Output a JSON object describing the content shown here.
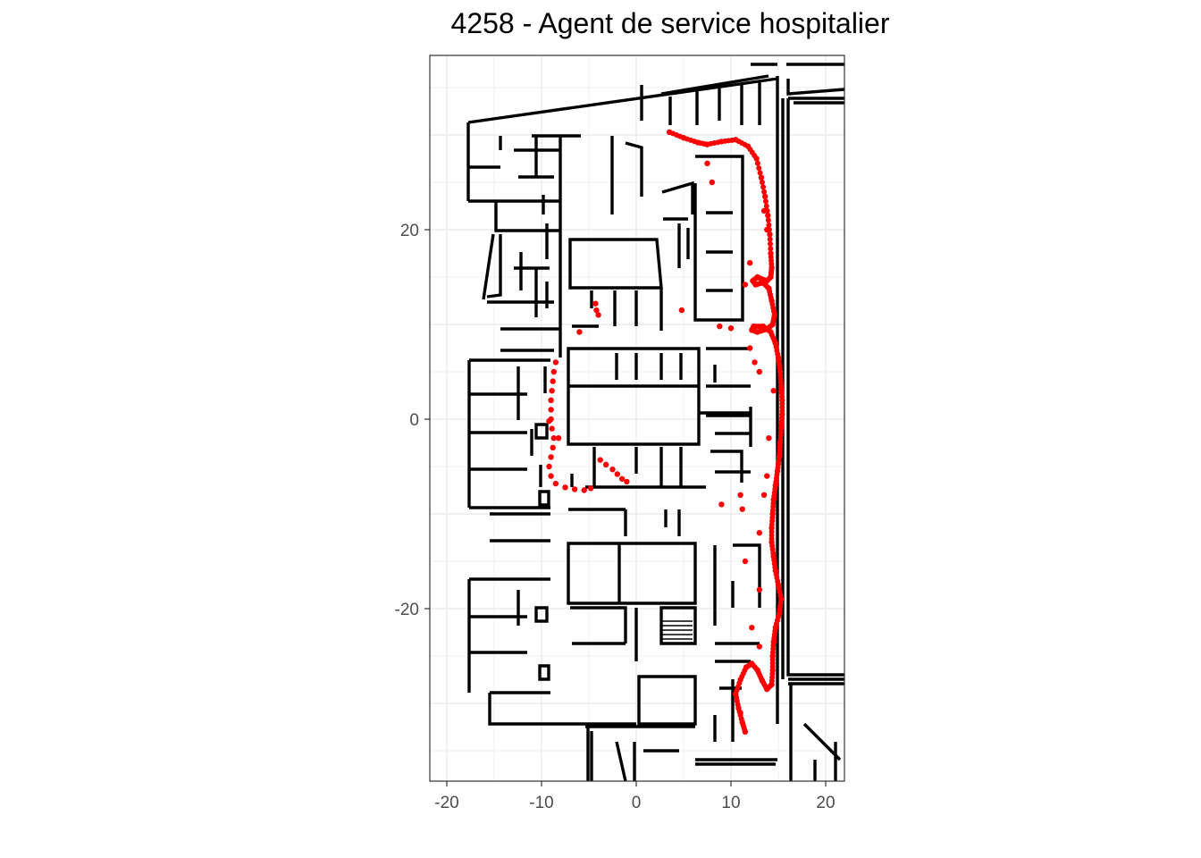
{
  "chart_data": {
    "type": "scatter",
    "title": "4258 - Agent de service hospitalier",
    "xlabel": "",
    "ylabel": "",
    "xlim": [
      -22,
      22
    ],
    "ylim": [
      -38,
      38
    ],
    "x_ticks": [
      -20,
      -10,
      0,
      10,
      20
    ],
    "y_ticks": [
      20,
      0,
      -20
    ],
    "grid": true,
    "background_layer": "floor plan walls (black line segments)",
    "point_color": "#ff0000",
    "wall_color": "#000000",
    "series": [
      {
        "points": [
          [
            3.5,
            30.3
          ],
          [
            5.0,
            29.7
          ],
          [
            6.5,
            29.2
          ],
          [
            7.5,
            29.0
          ],
          [
            9.0,
            29.3
          ],
          [
            10.5,
            29.5
          ],
          [
            11.8,
            28.8
          ],
          [
            12.7,
            27.5
          ],
          [
            13.2,
            25.5
          ],
          [
            13.6,
            23.5
          ],
          [
            13.9,
            21.5
          ],
          [
            14.1,
            19.5
          ],
          [
            14.2,
            17.5
          ],
          [
            14.3,
            16.0
          ],
          [
            14.2,
            15.0
          ],
          [
            13.8,
            14.6
          ],
          [
            13.2,
            14.8
          ],
          [
            12.8,
            15.0
          ],
          [
            12.3,
            14.6
          ],
          [
            12.6,
            14.2
          ],
          [
            13.4,
            14.4
          ],
          [
            14.0,
            13.8
          ],
          [
            14.3,
            12.5
          ],
          [
            14.6,
            11.0
          ],
          [
            14.4,
            10.0
          ],
          [
            13.8,
            9.5
          ],
          [
            12.8,
            9.2
          ],
          [
            12.2,
            9.4
          ],
          [
            12.4,
            9.8
          ],
          [
            13.4,
            9.8
          ],
          [
            14.2,
            9.2
          ],
          [
            14.7,
            8.0
          ],
          [
            15.0,
            6.5
          ],
          [
            15.2,
            5.0
          ],
          [
            15.3,
            3.5
          ],
          [
            15.4,
            2.0
          ],
          [
            15.4,
            0.5
          ],
          [
            15.3,
            -1.0
          ],
          [
            15.2,
            -2.5
          ],
          [
            15.1,
            -4.0
          ],
          [
            14.9,
            -5.5
          ],
          [
            14.7,
            -7.0
          ],
          [
            14.5,
            -8.5
          ],
          [
            14.4,
            -10.0
          ],
          [
            14.3,
            -11.5
          ],
          [
            14.3,
            -13.0
          ],
          [
            14.5,
            -14.5
          ],
          [
            14.7,
            -16.0
          ],
          [
            15.0,
            -17.5
          ],
          [
            15.3,
            -19.0
          ],
          [
            15.1,
            -20.5
          ],
          [
            14.7,
            -22.0
          ],
          [
            14.5,
            -23.5
          ],
          [
            14.4,
            -25.0
          ],
          [
            14.4,
            -26.5
          ],
          [
            14.3,
            -28.0
          ],
          [
            13.8,
            -28.5
          ],
          [
            13.3,
            -27.6
          ],
          [
            12.8,
            -26.5
          ],
          [
            12.2,
            -25.8
          ],
          [
            11.6,
            -26.2
          ],
          [
            11.0,
            -27.5
          ],
          [
            10.5,
            -29.0
          ],
          [
            10.8,
            -30.5
          ],
          [
            11.2,
            -32.0
          ],
          [
            11.5,
            -33.0
          ],
          [
            7.5,
            27.0
          ],
          [
            8.0,
            25.0
          ],
          [
            13.5,
            22.0
          ],
          [
            13.8,
            20.0
          ],
          [
            12.0,
            16.5
          ],
          [
            11.5,
            14.2
          ],
          [
            8.8,
            9.8
          ],
          [
            10.0,
            9.6
          ],
          [
            12.0,
            7.5
          ],
          [
            12.5,
            6.0
          ],
          [
            13.0,
            5.0
          ],
          [
            14.5,
            3.0
          ],
          [
            14.0,
            -2.0
          ],
          [
            13.8,
            -6.0
          ],
          [
            13.5,
            -8.0
          ],
          [
            11.0,
            -8.0
          ],
          [
            9.0,
            -9.0
          ],
          [
            11.2,
            -9.5
          ],
          [
            13.0,
            -12.0
          ],
          [
            11.5,
            -15.0
          ],
          [
            13.0,
            -18.0
          ],
          [
            12.2,
            -22.0
          ],
          [
            13.0,
            -24.0
          ],
          [
            11.0,
            -31.0
          ],
          [
            -8.5,
            6.0
          ],
          [
            -8.7,
            5.0
          ],
          [
            -8.8,
            4.0
          ],
          [
            -8.9,
            3.0
          ],
          [
            -9.0,
            2.0
          ],
          [
            -9.0,
            1.0
          ],
          [
            -9.0,
            0.0
          ],
          [
            -8.9,
            -1.0
          ],
          [
            -8.7,
            -2.0
          ],
          [
            -8.8,
            -3.0
          ],
          [
            -9.0,
            -4.0
          ],
          [
            -9.2,
            -5.0
          ],
          [
            -9.0,
            -6.0
          ],
          [
            -8.5,
            -6.8
          ],
          [
            -7.5,
            -7.2
          ],
          [
            -6.5,
            -7.4
          ],
          [
            -5.5,
            -7.5
          ],
          [
            -4.8,
            -7.3
          ],
          [
            -8.2,
            -2.0
          ],
          [
            -9.2,
            -0.2
          ],
          [
            -3.8,
            -4.3
          ],
          [
            -3.2,
            -4.8
          ],
          [
            -2.5,
            -5.3
          ],
          [
            -2.0,
            -5.8
          ],
          [
            -1.5,
            -6.3
          ],
          [
            -1.0,
            -6.6
          ],
          [
            -4.3,
            12.2
          ],
          [
            -4.2,
            11.5
          ],
          [
            -4.0,
            11.0
          ],
          [
            -6.0,
            9.2
          ],
          [
            4.8,
            11.5
          ]
        ]
      }
    ]
  }
}
